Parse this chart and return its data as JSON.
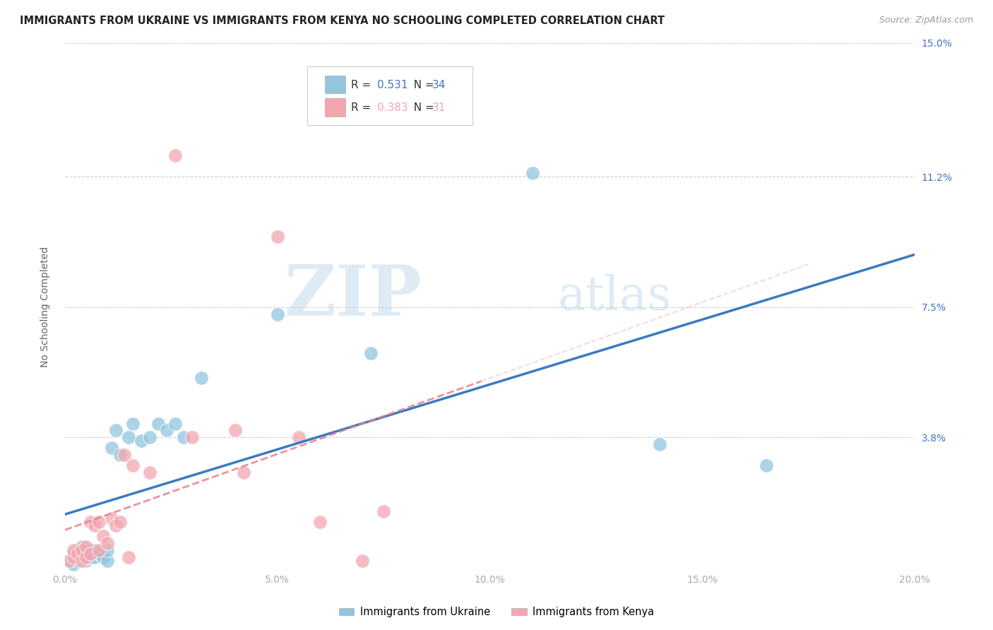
{
  "title": "IMMIGRANTS FROM UKRAINE VS IMMIGRANTS FROM KENYA NO SCHOOLING COMPLETED CORRELATION CHART",
  "source": "Source: ZipAtlas.com",
  "ylabel": "No Schooling Completed",
  "watermark_zip": "ZIP",
  "watermark_atlas": "atlas",
  "xlim": [
    0.0,
    0.2
  ],
  "ylim": [
    0.0,
    0.15
  ],
  "xticks": [
    0.0,
    0.05,
    0.1,
    0.15,
    0.2
  ],
  "xtick_labels": [
    "0.0%",
    "5.0%",
    "10.0%",
    "15.0%",
    "20.0%"
  ],
  "ytick_labels": [
    "3.8%",
    "7.5%",
    "11.2%",
    "15.0%"
  ],
  "yticks": [
    0.038,
    0.075,
    0.112,
    0.15
  ],
  "ukraine_R": 0.531,
  "ukraine_N": 34,
  "kenya_R": 0.383,
  "kenya_N": 31,
  "ukraine_color": "#92c5de",
  "kenya_color": "#f4a6b0",
  "ukraine_line_color": "#3a7bbf",
  "kenya_line_color": "#e8808a",
  "background_color": "#ffffff",
  "grid_color": "#d0d0d0",
  "right_tick_color": "#4472c4",
  "ukraine_x": [
    0.001,
    0.002,
    0.002,
    0.003,
    0.003,
    0.004,
    0.004,
    0.005,
    0.005,
    0.006,
    0.006,
    0.007,
    0.007,
    0.008,
    0.009,
    0.01,
    0.01,
    0.011,
    0.012,
    0.013,
    0.015,
    0.016,
    0.018,
    0.02,
    0.022,
    0.024,
    0.026,
    0.028,
    0.032,
    0.05,
    0.072,
    0.11,
    0.14,
    0.165
  ],
  "ukraine_y": [
    0.003,
    0.002,
    0.005,
    0.003,
    0.006,
    0.004,
    0.007,
    0.003,
    0.005,
    0.004,
    0.006,
    0.004,
    0.006,
    0.005,
    0.004,
    0.003,
    0.006,
    0.035,
    0.04,
    0.033,
    0.038,
    0.042,
    0.037,
    0.038,
    0.042,
    0.04,
    0.042,
    0.038,
    0.055,
    0.073,
    0.062,
    0.113,
    0.036,
    0.03
  ],
  "kenya_x": [
    0.001,
    0.002,
    0.002,
    0.003,
    0.004,
    0.004,
    0.005,
    0.005,
    0.006,
    0.006,
    0.007,
    0.008,
    0.008,
    0.009,
    0.01,
    0.011,
    0.012,
    0.013,
    0.014,
    0.015,
    0.016,
    0.02,
    0.026,
    0.03,
    0.04,
    0.042,
    0.05,
    0.055,
    0.06,
    0.07,
    0.075
  ],
  "kenya_y": [
    0.003,
    0.004,
    0.006,
    0.005,
    0.003,
    0.006,
    0.004,
    0.007,
    0.005,
    0.014,
    0.013,
    0.006,
    0.014,
    0.01,
    0.008,
    0.015,
    0.013,
    0.014,
    0.033,
    0.004,
    0.03,
    0.028,
    0.118,
    0.038,
    0.04,
    0.028,
    0.095,
    0.038,
    0.014,
    0.003,
    0.017
  ]
}
